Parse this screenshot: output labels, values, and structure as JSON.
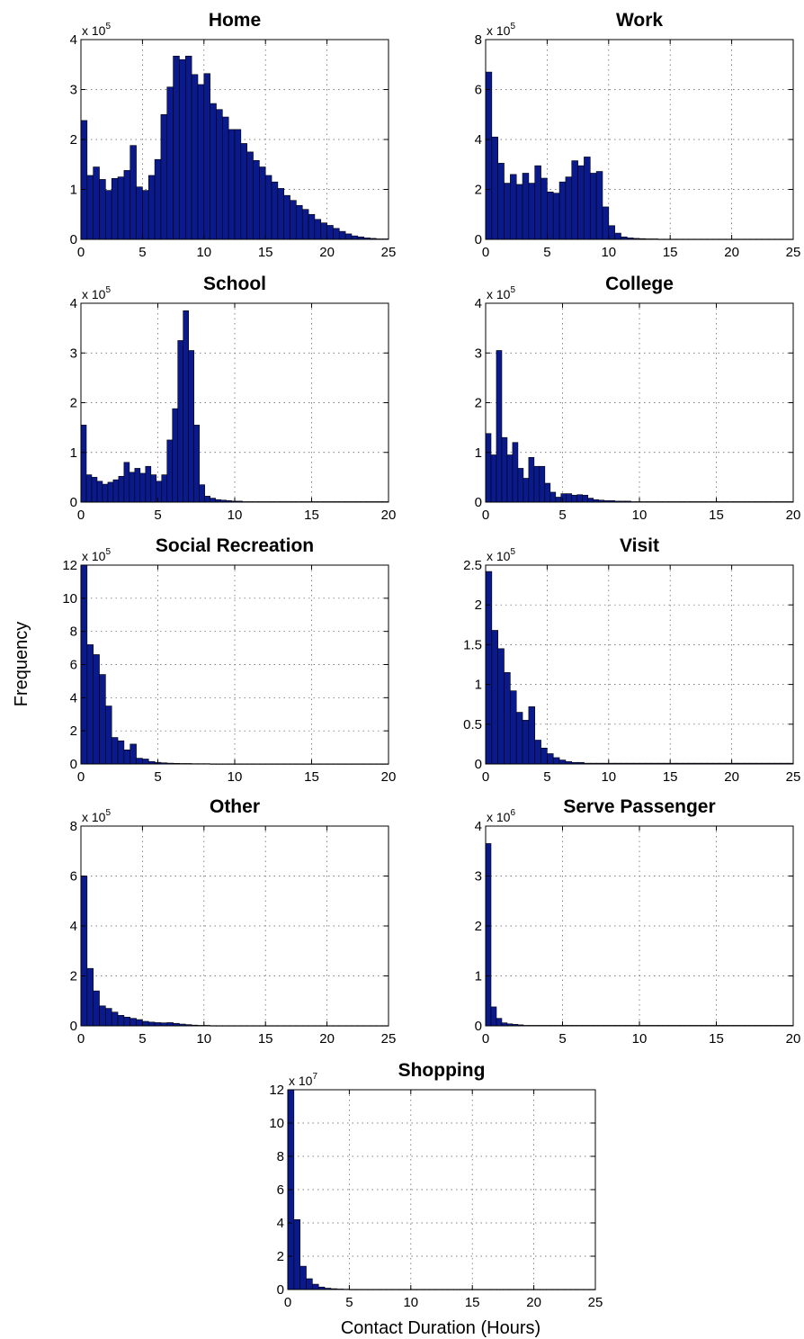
{
  "figure": {
    "ylabel": "Frequency",
    "xlabel": "Contact Duration (Hours)",
    "bar_color": "#0a1a8c",
    "edge_color": "#000000"
  },
  "chart_data": [
    {
      "type": "bar",
      "title": "Home",
      "bin_width": 0.5,
      "xlim": [
        0,
        25
      ],
      "xticks": [
        0,
        5,
        10,
        15,
        20,
        25
      ],
      "ylim": [
        0,
        4
      ],
      "yticks": [
        0,
        1,
        2,
        3,
        4
      ],
      "yscale_label": "x 10",
      "yscale_exp": "5",
      "grid": true,
      "values": [
        2.38,
        1.28,
        1.45,
        1.2,
        0.98,
        1.22,
        1.25,
        1.38,
        1.88,
        1.05,
        0.98,
        1.28,
        1.6,
        2.5,
        3.05,
        3.67,
        3.6,
        3.67,
        3.3,
        3.1,
        3.32,
        2.72,
        2.6,
        2.45,
        2.2,
        2.2,
        1.92,
        1.75,
        1.58,
        1.45,
        1.28,
        1.15,
        1.02,
        0.88,
        0.78,
        0.68,
        0.6,
        0.5,
        0.4,
        0.33,
        0.28,
        0.22,
        0.16,
        0.11,
        0.07,
        0.05,
        0.03,
        0.02,
        0.01,
        0.01
      ]
    },
    {
      "type": "bar",
      "title": "Work",
      "bin_width": 0.5,
      "xlim": [
        0,
        25
      ],
      "xticks": [
        0,
        5,
        10,
        15,
        20,
        25
      ],
      "ylim": [
        0,
        8
      ],
      "yticks": [
        0,
        2,
        4,
        6,
        8
      ],
      "yscale_label": "x 10",
      "yscale_exp": "5",
      "grid": true,
      "values": [
        6.7,
        4.1,
        3.05,
        2.25,
        2.6,
        2.2,
        2.65,
        2.25,
        2.95,
        2.45,
        1.9,
        1.85,
        2.3,
        2.5,
        3.15,
        2.95,
        3.3,
        2.65,
        2.72,
        1.3,
        0.55,
        0.25,
        0.1,
        0.06,
        0.04,
        0.03,
        0.02,
        0.02,
        0.01,
        0.01,
        0.01,
        0.01,
        0.01,
        0.01,
        0.01,
        0.01,
        0.01,
        0.01,
        0.01,
        0.01,
        0.01,
        0.01,
        0.01,
        0.01,
        0.01,
        0.01,
        0.01,
        0.01,
        0.01,
        0.01
      ]
    },
    {
      "type": "bar",
      "title": "School",
      "bin_width": 0.35,
      "xlim": [
        0,
        20
      ],
      "xticks": [
        0,
        5,
        10,
        15,
        20
      ],
      "ylim": [
        0,
        4
      ],
      "yticks": [
        0,
        1,
        2,
        3,
        4
      ],
      "yscale_label": "x 10",
      "yscale_exp": "5",
      "grid": true,
      "values": [
        1.55,
        0.55,
        0.5,
        0.42,
        0.36,
        0.4,
        0.45,
        0.52,
        0.8,
        0.6,
        0.68,
        0.58,
        0.72,
        0.55,
        0.42,
        0.55,
        1.25,
        1.88,
        3.25,
        3.85,
        3.05,
        1.55,
        0.35,
        0.12,
        0.08,
        0.05,
        0.04,
        0.03,
        0.02,
        0.02,
        0.01,
        0.01,
        0.01,
        0.01,
        0.01,
        0.01,
        0.01,
        0.01,
        0.01,
        0.01,
        0.01,
        0.01,
        0.01,
        0.01,
        0.01,
        0.01,
        0.01,
        0.01,
        0.01,
        0.01,
        0.01,
        0.01,
        0.01,
        0.01,
        0.01,
        0.01,
        0.01
      ]
    },
    {
      "type": "bar",
      "title": "College",
      "bin_width": 0.35,
      "xlim": [
        0,
        20
      ],
      "xticks": [
        0,
        5,
        10,
        15,
        20
      ],
      "ylim": [
        0,
        4
      ],
      "yticks": [
        0,
        1,
        2,
        3,
        4
      ],
      "yscale_label": "x 10",
      "yscale_exp": "5",
      "grid": true,
      "values": [
        1.38,
        0.95,
        3.05,
        1.3,
        0.95,
        1.2,
        0.68,
        0.48,
        0.9,
        0.72,
        0.72,
        0.38,
        0.2,
        0.1,
        0.17,
        0.17,
        0.14,
        0.15,
        0.14,
        0.08,
        0.05,
        0.04,
        0.03,
        0.03,
        0.02,
        0.02,
        0.02,
        0.01,
        0.01,
        0.01,
        0.01,
        0.01,
        0.01,
        0.01,
        0.01,
        0.01,
        0.01,
        0.01,
        0.01,
        0.01,
        0.01,
        0.01,
        0.01,
        0.01,
        0.01,
        0.01,
        0.01,
        0.01,
        0.01,
        0.01,
        0.01,
        0.01,
        0.01,
        0.01,
        0.01,
        0.01,
        0.01
      ]
    },
    {
      "type": "bar",
      "title": "Social Recreation",
      "bin_width": 0.4,
      "xlim": [
        0,
        20
      ],
      "xticks": [
        0,
        5,
        10,
        15,
        20
      ],
      "ylim": [
        0,
        12
      ],
      "yticks": [
        0,
        2,
        4,
        6,
        8,
        10,
        12
      ],
      "yscale_label": "x 10",
      "yscale_exp": "5",
      "grid": true,
      "values": [
        12.0,
        7.2,
        6.6,
        5.4,
        3.5,
        1.6,
        1.4,
        0.85,
        1.2,
        0.35,
        0.3,
        0.15,
        0.1,
        0.07,
        0.05,
        0.04,
        0.03,
        0.03,
        0.02,
        0.02,
        0.02,
        0.01,
        0.01,
        0.01,
        0.01,
        0.01,
        0.01,
        0.01,
        0.01,
        0.01,
        0.01,
        0.01,
        0.01,
        0.01,
        0.01,
        0.01,
        0.01,
        0.01,
        0.01,
        0.01,
        0.01,
        0.01,
        0.01,
        0.01,
        0.01,
        0.01,
        0.01,
        0.01,
        0.01,
        0.01
      ]
    },
    {
      "type": "bar",
      "title": "Visit",
      "bin_width": 0.5,
      "xlim": [
        0,
        25
      ],
      "xticks": [
        0,
        5,
        10,
        15,
        20,
        25
      ],
      "ylim": [
        0,
        2.5
      ],
      "yticks": [
        0,
        0.5,
        1,
        1.5,
        2,
        2.5
      ],
      "yscale_label": "x 10",
      "yscale_exp": "5",
      "grid": true,
      "values": [
        2.42,
        1.68,
        1.45,
        1.15,
        0.92,
        0.65,
        0.55,
        0.72,
        0.3,
        0.2,
        0.13,
        0.08,
        0.05,
        0.03,
        0.02,
        0.02,
        0.01,
        0.01,
        0.01,
        0.01,
        0.01,
        0.01,
        0.01,
        0.01,
        0.01,
        0.01,
        0.01,
        0.01,
        0.01,
        0.01,
        0.01,
        0.01,
        0.01,
        0.01,
        0.01,
        0.01,
        0.01,
        0.01,
        0.01,
        0.01,
        0.01,
        0.01,
        0.01,
        0.01,
        0.01,
        0.01,
        0.01,
        0.01,
        0.01,
        0.01
      ]
    },
    {
      "type": "bar",
      "title": "Other",
      "bin_width": 0.5,
      "xlim": [
        0,
        25
      ],
      "xticks": [
        0,
        5,
        10,
        15,
        20,
        25
      ],
      "ylim": [
        0,
        8
      ],
      "yticks": [
        0,
        2,
        4,
        6,
        8
      ],
      "yscale_label": "x 10",
      "yscale_exp": "5",
      "grid": true,
      "values": [
        6.0,
        2.3,
        1.4,
        0.8,
        0.7,
        0.55,
        0.42,
        0.35,
        0.3,
        0.25,
        0.18,
        0.15,
        0.13,
        0.12,
        0.13,
        0.1,
        0.07,
        0.05,
        0.03,
        0.02,
        0.02,
        0.01,
        0.01,
        0.01,
        0.01,
        0.01,
        0.01,
        0.01,
        0.01,
        0.01,
        0.01,
        0.01,
        0.01,
        0.01,
        0.01,
        0.01,
        0.01,
        0.01,
        0.01,
        0.01,
        0.01,
        0.01,
        0.01,
        0.01,
        0.01,
        0.01,
        0.01,
        0.01,
        0.01,
        0.01
      ]
    },
    {
      "type": "bar",
      "title": "Serve Passenger",
      "bin_width": 0.35,
      "xlim": [
        0,
        20
      ],
      "xticks": [
        0,
        5,
        10,
        15,
        20
      ],
      "ylim": [
        0,
        4
      ],
      "yticks": [
        0,
        1,
        2,
        3,
        4
      ],
      "yscale_label": "x 10",
      "yscale_exp": "6",
      "grid": true,
      "values": [
        3.65,
        0.38,
        0.15,
        0.06,
        0.04,
        0.03,
        0.02,
        0.01,
        0.01,
        0.01,
        0.01,
        0.01,
        0.01,
        0.01,
        0.01,
        0.01,
        0.01,
        0.01,
        0.01,
        0.01,
        0.01,
        0.01,
        0.01,
        0.01,
        0.01,
        0.01,
        0.01,
        0.01,
        0.01,
        0.01,
        0.01,
        0.01,
        0.01,
        0.01,
        0.01,
        0.01,
        0.01,
        0.01,
        0.01,
        0.01,
        0.01,
        0.01,
        0.01,
        0.01,
        0.01,
        0.01,
        0.01,
        0.01,
        0.01,
        0.01,
        0.01,
        0.01,
        0.01,
        0.01,
        0.01,
        0.01,
        0.01
      ]
    },
    {
      "type": "bar",
      "title": "Shopping",
      "bin_width": 0.5,
      "xlim": [
        0,
        25
      ],
      "xticks": [
        0,
        5,
        10,
        15,
        20,
        25
      ],
      "ylim": [
        0,
        12
      ],
      "yticks": [
        0,
        2,
        4,
        6,
        8,
        10,
        12
      ],
      "yscale_label": "x 10",
      "yscale_exp": "7",
      "grid": true,
      "values": [
        12.0,
        4.2,
        1.4,
        0.65,
        0.32,
        0.15,
        0.08,
        0.05,
        0.03,
        0.02,
        0.01,
        0.01,
        0.01,
        0.01,
        0.01,
        0.01,
        0.01,
        0.01,
        0.01,
        0.01,
        0.01,
        0.01,
        0.01,
        0.01,
        0.01,
        0.01,
        0.01,
        0.01,
        0.01,
        0.01,
        0.01,
        0.01,
        0.01,
        0.01,
        0.01,
        0.01,
        0.01,
        0.01,
        0.01,
        0.01,
        0.01,
        0.01,
        0.01,
        0.01,
        0.01,
        0.01,
        0.01,
        0.01,
        0.01,
        0.01
      ]
    }
  ]
}
